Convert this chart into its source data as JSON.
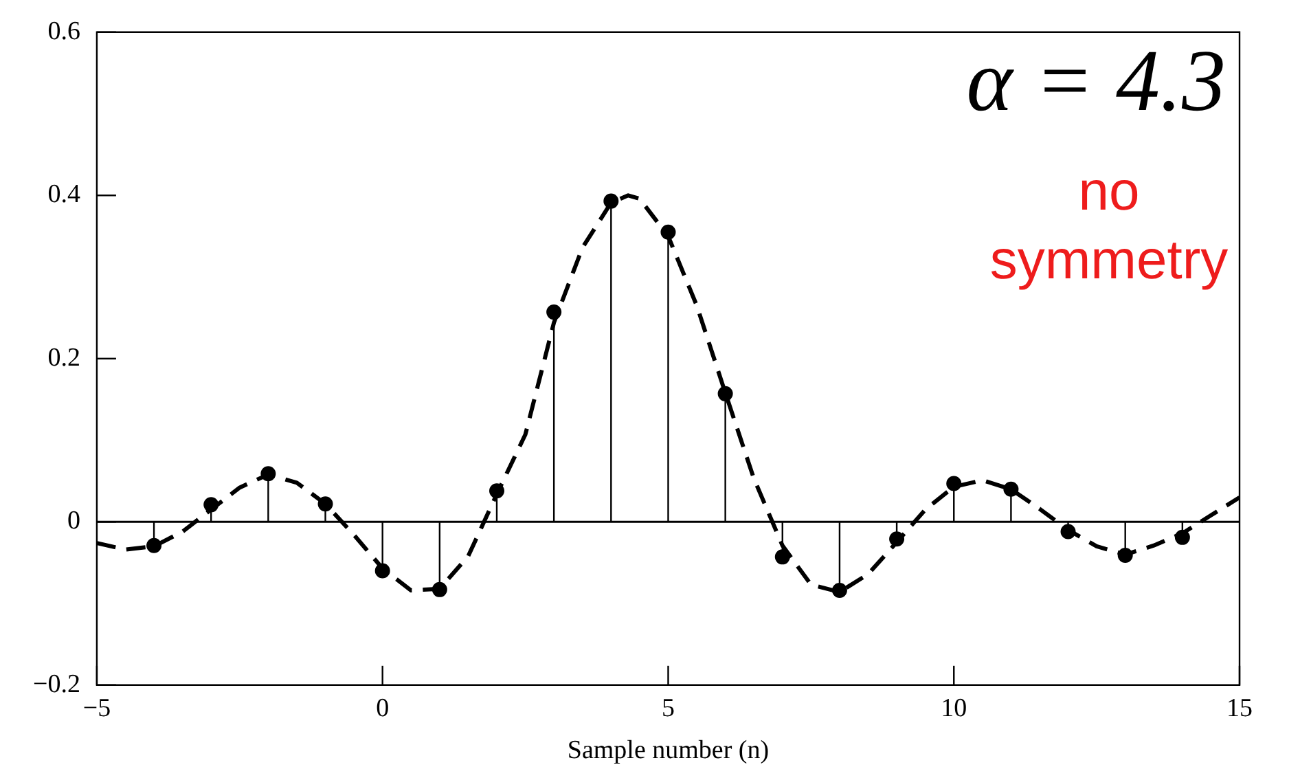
{
  "chart_data": {
    "type": "lollipop",
    "xlabel": "Sample number (n)",
    "annotations": [
      "α = 4.3",
      "no symmetry"
    ],
    "xlim": [
      -5,
      15
    ],
    "ylim": [
      -0.2,
      0.6
    ],
    "xticks": [
      {
        "value": -5,
        "label": "−5"
      },
      0,
      5,
      10,
      15
    ],
    "yticks": [
      {
        "value": -0.2,
        "label": "−0.2"
      },
      0,
      0.2,
      0.4,
      0.6
    ],
    "ref_lines": [
      {
        "axis": "y",
        "value": 0,
        "color": "#000000"
      }
    ],
    "series": [
      {
        "color": "#000000",
        "marker": "circle",
        "x": [
          -4,
          -3,
          -2,
          -1,
          0,
          1,
          2,
          3,
          4,
          5,
          6,
          7,
          8,
          9,
          10,
          11,
          12,
          13,
          14
        ],
        "values": [
          -0.029,
          0.021,
          0.059,
          0.022,
          -0.06,
          -0.083,
          0.038,
          0.257,
          0.393,
          0.355,
          0.157,
          -0.043,
          -0.084,
          -0.021,
          0.047,
          0.04,
          -0.012,
          -0.041,
          -0.019
        ]
      },
      {
        "type": "line",
        "color": "#000000",
        "marker": "none",
        "line_style": "dashed",
        "x": [
          -5,
          -4.5,
          -4,
          -3.5,
          -3,
          -2.5,
          -2,
          -1.5,
          -1,
          -0.5,
          0,
          0.5,
          1,
          1.5,
          2,
          2.5,
          3,
          3.5,
          4,
          4.3,
          4.5,
          5,
          5.5,
          6,
          6.5,
          7,
          7.5,
          8,
          8.5,
          9,
          9.5,
          10,
          10.5,
          11,
          11.5,
          12,
          12.5,
          13,
          13.5,
          14,
          14.5,
          15
        ],
        "values": [
          -0.026,
          -0.034,
          -0.03,
          -0.012,
          0.015,
          0.042,
          0.058,
          0.048,
          0.022,
          -0.016,
          -0.057,
          -0.084,
          -0.082,
          -0.042,
          0.034,
          0.107,
          0.244,
          0.336,
          0.391,
          0.4,
          0.396,
          0.35,
          0.265,
          0.158,
          0.053,
          -0.029,
          -0.077,
          -0.086,
          -0.064,
          -0.025,
          0.015,
          0.043,
          0.051,
          0.04,
          0.016,
          -0.01,
          -0.03,
          -0.04,
          -0.029,
          -0.014,
          0.008,
          0.03
        ]
      }
    ]
  }
}
